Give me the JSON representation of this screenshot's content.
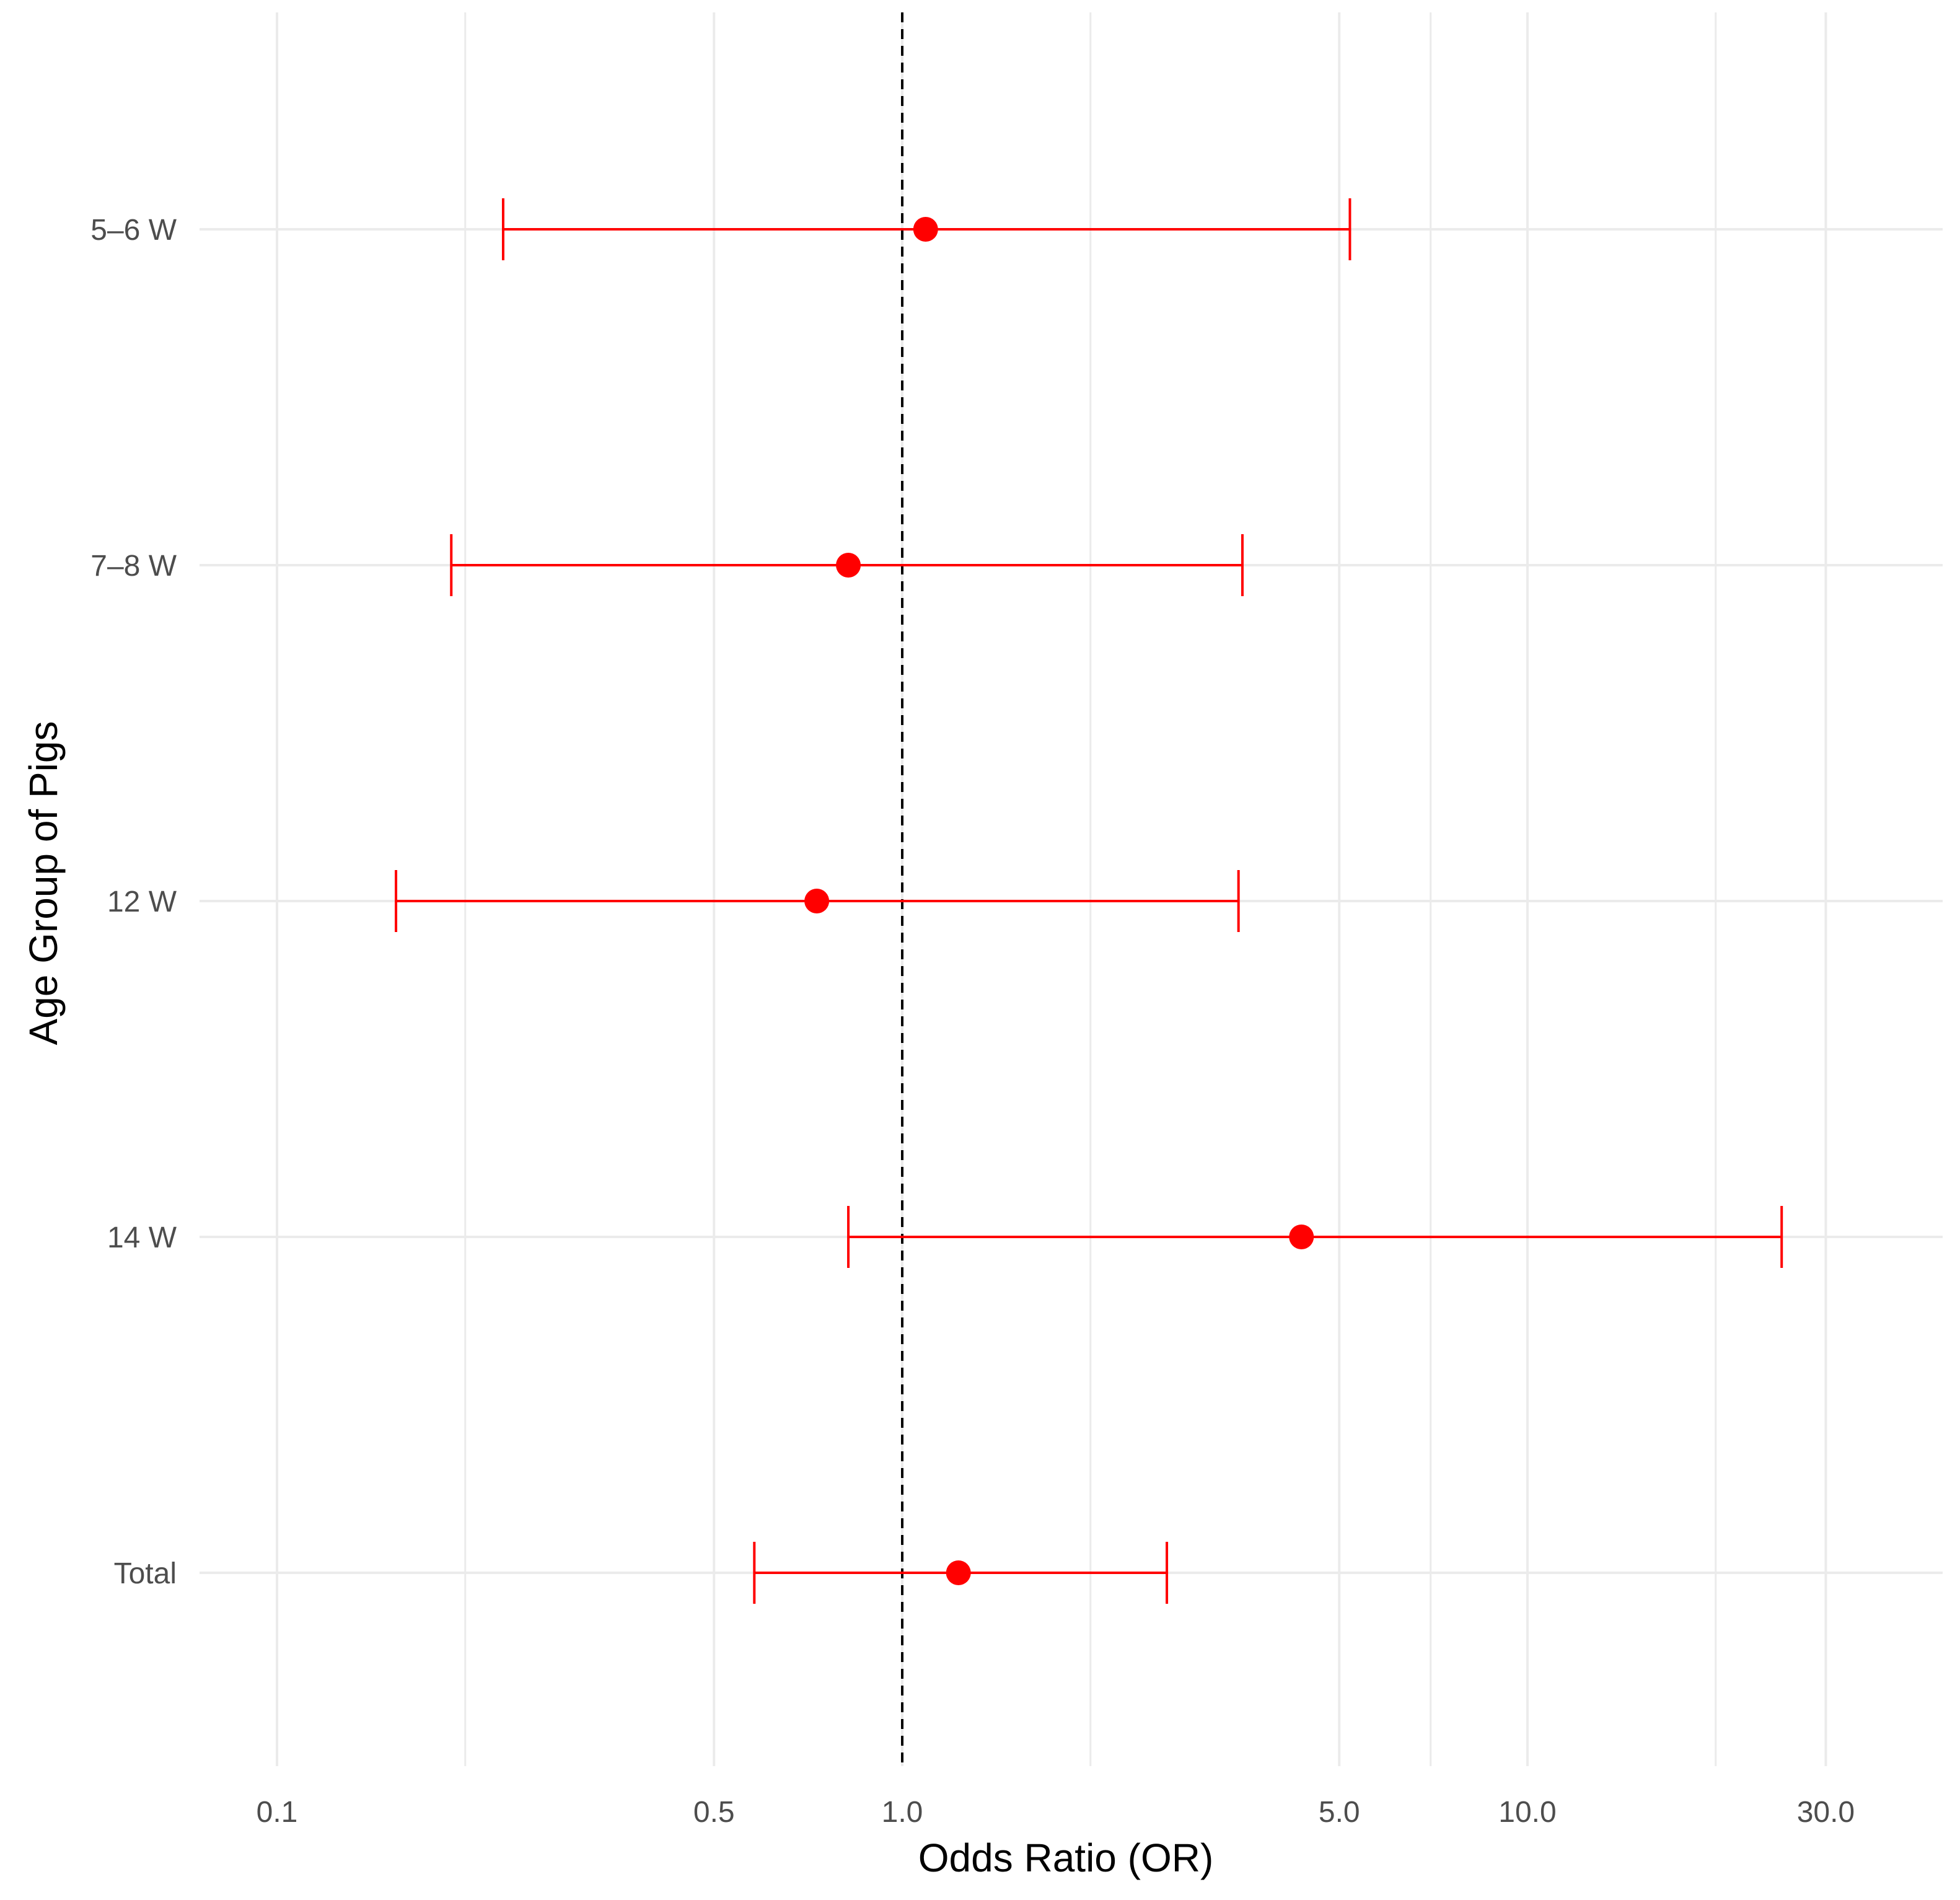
{
  "chart_data": {
    "type": "forest",
    "title": "",
    "xlabel": "Odds Ratio (OR)",
    "ylabel": "Age Group of Pigs",
    "x_scale": "log10",
    "xlim": [
      0.08,
      45
    ],
    "x_ticks": [
      {
        "value": 0.1,
        "label": "0.1"
      },
      {
        "value": 0.5,
        "label": "0.5"
      },
      {
        "value": 1.0,
        "label": "1.0"
      },
      {
        "value": 5.0,
        "label": "5.0"
      },
      {
        "value": 10.0,
        "label": "10.0"
      },
      {
        "value": 30.0,
        "label": "30.0"
      }
    ],
    "x_minor_gridlines": [
      0.2,
      2.0,
      7.0,
      20.0
    ],
    "reference_line": {
      "value": 1.0,
      "style": "dashed"
    },
    "grid": true,
    "legend": "none",
    "point_color": "#ff0000",
    "categories": [
      "5–6 W",
      "7–8 W",
      "12 W",
      "14 W",
      "Total"
    ],
    "series": [
      {
        "name": "Odds Ratio",
        "or": [
          1.09,
          0.82,
          0.73,
          4.35,
          1.23
        ],
        "lower": [
          0.23,
          0.19,
          0.155,
          0.82,
          0.58
        ],
        "upper": [
          5.2,
          3.5,
          3.45,
          25.5,
          2.65
        ]
      }
    ]
  }
}
